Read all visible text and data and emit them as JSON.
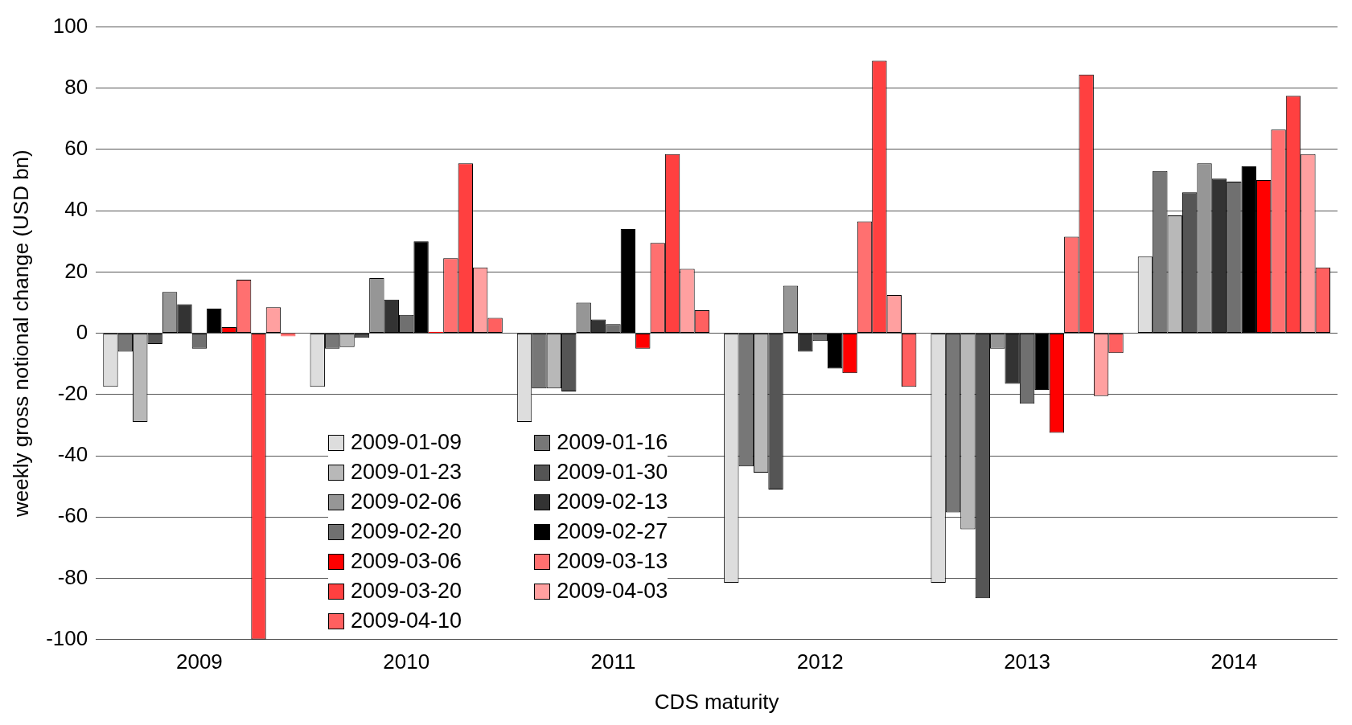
{
  "chart_data": {
    "type": "bar",
    "xlabel": "CDS maturity",
    "ylabel": "weekly gross notional change (USD bn)",
    "categories": [
      "2009",
      "2010",
      "2011",
      "2012",
      "2013",
      "2014"
    ],
    "ylim": [
      -100,
      100
    ],
    "yticks": [
      -100,
      -80,
      -60,
      -40,
      -20,
      0,
      20,
      40,
      60,
      80,
      100
    ],
    "grid": "y",
    "legend": "bottom left",
    "series": [
      {
        "name": "2009-01-09",
        "color": "#dddddd",
        "values": [
          -17.5,
          -17.5,
          -29,
          -81.5,
          -81.5,
          25
        ]
      },
      {
        "name": "2009-01-16",
        "color": "#777777",
        "values": [
          -6,
          -5,
          -18,
          -43.5,
          -58.5,
          53
        ]
      },
      {
        "name": "2009-01-23",
        "color": "#b8b8b8",
        "values": [
          -29,
          -4.5,
          -18,
          -45.5,
          -64,
          38.5
        ]
      },
      {
        "name": "2009-01-30",
        "color": "#555555",
        "values": [
          -3.5,
          -1.5,
          -19,
          -51,
          -86.5,
          46
        ]
      },
      {
        "name": "2009-02-06",
        "color": "#969696",
        "values": [
          13.5,
          18,
          10,
          15.5,
          -5,
          55.5
        ]
      },
      {
        "name": "2009-02-13",
        "color": "#333333",
        "values": [
          9.5,
          11,
          4.5,
          -6,
          -16.5,
          50.5
        ]
      },
      {
        "name": "2009-02-20",
        "color": "#707070",
        "values": [
          -5,
          6,
          3,
          -2.5,
          -23,
          49.5
        ]
      },
      {
        "name": "2009-02-27",
        "color": "#000000",
        "values": [
          8,
          30,
          34,
          -11.5,
          -18.5,
          54.5
        ]
      },
      {
        "name": "2009-03-06",
        "color": "#ff0000",
        "values": [
          2,
          0.5,
          -5,
          -13,
          -32.5,
          50
        ]
      },
      {
        "name": "2009-03-13",
        "color": "#ff7070",
        "values": [
          17.5,
          24.5,
          29.5,
          36.5,
          31.5,
          66.5
        ]
      },
      {
        "name": "2009-03-20",
        "color": "#ff4040",
        "values": [
          -100,
          55.5,
          58.5,
          89,
          84.5,
          77.5
        ]
      },
      {
        "name": "2009-04-03",
        "color": "#ffa0a0",
        "values": [
          8.5,
          21.5,
          21,
          12.5,
          -20.5,
          58.5
        ]
      },
      {
        "name": "2009-04-10",
        "color": "#ff6060",
        "values": [
          -1,
          5,
          7.5,
          -17.5,
          -6.5,
          21.5
        ]
      }
    ]
  }
}
